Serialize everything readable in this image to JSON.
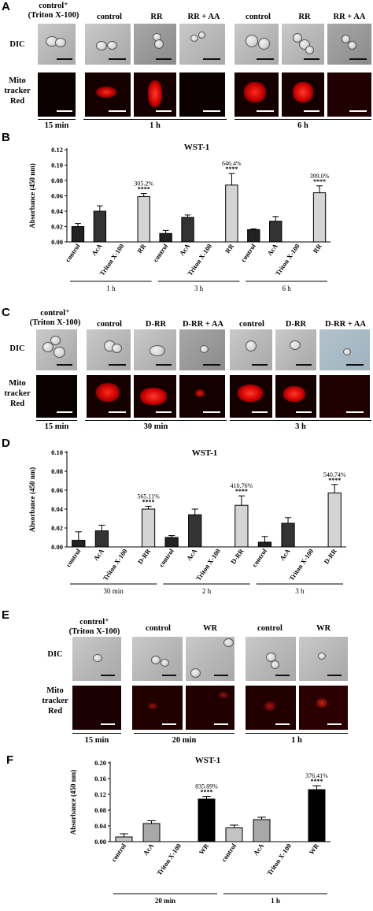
{
  "panels": {
    "A": {
      "letter": "A",
      "columns": [
        "control⁺\n(Triton X-100)",
        "control",
        "RR",
        "RR + AA",
        "control",
        "RR",
        "RR + AA"
      ],
      "rows": [
        "DIC",
        "Mito\ntracker\nRed"
      ],
      "times": [
        "15 min",
        "1 h",
        "6 h"
      ]
    },
    "C": {
      "letter": "C",
      "columns": [
        "control⁺\n(Triton X-100)",
        "control",
        "D-RR",
        "D-RR + AA",
        "control",
        "D-RR",
        "D-RR + AA"
      ],
      "rows": [
        "DIC",
        "Mito\ntracker\nRed"
      ],
      "times": [
        "15 min",
        "30 min",
        "3 h"
      ]
    },
    "E": {
      "letter": "E",
      "columns": [
        "control⁺\n(Triton X-100)",
        "control",
        "WR",
        "control",
        "WR"
      ],
      "rows": [
        "DIC",
        "Mito\ntracker\nRed"
      ],
      "times": [
        "15 min",
        "20 min",
        "1 h"
      ]
    }
  },
  "chart_data": [
    {
      "panel": "B",
      "type": "bar",
      "title": "WST-1",
      "ylabel": "Absorbance (450 nm)",
      "ylim": [
        0,
        0.12
      ],
      "yticks": [
        "0.00",
        "0.02",
        "0.04",
        "0.06",
        "0.08",
        "0.10",
        "0.12"
      ],
      "categories": [
        "control",
        "AcA",
        "Triton X-100",
        "RR",
        "control",
        "AcA",
        "Triton X-100",
        "RR",
        "control",
        "AcA",
        "Triton X-100",
        "RR"
      ],
      "values": [
        0.02,
        0.04,
        0,
        0.059,
        0.011,
        0.032,
        0,
        0.074,
        0.016,
        0.027,
        0,
        0.064
      ],
      "errors": [
        0.004,
        0.007,
        0,
        0.004,
        0.004,
        0.003,
        0,
        0.015,
        0.001,
        0.006,
        0,
        0.009
      ],
      "colors": [
        "#222222",
        "#333333",
        "#ffffff",
        "#d4d4d4",
        "#222222",
        "#333333",
        "#ffffff",
        "#d4d4d4",
        "#222222",
        "#333333",
        "#ffffff",
        "#d4d4d4"
      ],
      "annotations": [
        {
          "index": 3,
          "pct": "305.2%",
          "stars": "****"
        },
        {
          "index": 7,
          "pct": "646.4%",
          "stars": "****"
        },
        {
          "index": 11,
          "pct": "399.0%",
          "stars": "****"
        }
      ],
      "groups": [
        "1 h",
        "3 h",
        "6 h"
      ]
    },
    {
      "panel": "D",
      "type": "bar",
      "title": "WST-1",
      "ylabel": "Absorbance (450 nm)",
      "ylim": [
        0,
        0.1
      ],
      "yticks": [
        "0.00",
        "0.02",
        "0.04",
        "0.06",
        "0.08",
        "0.10"
      ],
      "categories": [
        "control",
        "AcA",
        "Triton X-100",
        "D-RR",
        "control",
        "AcA",
        "Triton X-100",
        "D-RR",
        "control",
        "AcA",
        "Triton X-100",
        "D-RR"
      ],
      "values": [
        0.007,
        0.017,
        0,
        0.04,
        0.01,
        0.034,
        0,
        0.044,
        0.005,
        0.025,
        0,
        0.057
      ],
      "errors": [
        0.009,
        0.006,
        0,
        0.003,
        0.002,
        0.006,
        0,
        0.01,
        0.006,
        0.006,
        0,
        0.009
      ],
      "colors": [
        "#222222",
        "#333333",
        "#ffffff",
        "#d4d4d4",
        "#222222",
        "#333333",
        "#ffffff",
        "#d4d4d4",
        "#222222",
        "#333333",
        "#ffffff",
        "#d4d4d4"
      ],
      "annotations": [
        {
          "index": 3,
          "pct": "565.11%",
          "stars": "****"
        },
        {
          "index": 7,
          "pct": "410.76%",
          "stars": "****"
        },
        {
          "index": 11,
          "pct": "540.74%",
          "stars": "****"
        }
      ],
      "groups": [
        "30 min",
        "2 h",
        "3 h"
      ]
    },
    {
      "panel": "F",
      "type": "bar",
      "title": "WST-1",
      "ylabel": "Absorbance (450 nm)",
      "ylim": [
        0,
        0.2
      ],
      "yticks": [
        "0.00",
        "0.04",
        "0.08",
        "0.12",
        "0.16",
        "0.20"
      ],
      "categories": [
        "control",
        "AcA",
        "Triton X-100",
        "WR",
        "control",
        "AcA",
        "Triton X-100",
        "WR"
      ],
      "values": [
        0.012,
        0.046,
        0,
        0.108,
        0.035,
        0.056,
        0,
        0.132
      ],
      "errors": [
        0.008,
        0.007,
        0,
        0.007,
        0.007,
        0.006,
        0,
        0.01
      ],
      "colors": [
        "#c4c4c4",
        "#a8a8a8",
        "#ffffff",
        "#000000",
        "#c4c4c4",
        "#a8a8a8",
        "#ffffff",
        "#000000"
      ],
      "annotations": [
        {
          "index": 3,
          "pct": "835.89%",
          "stars": "****"
        },
        {
          "index": 7,
          "pct": "376.41%",
          "stars": "****"
        }
      ],
      "groups": [
        "20 min",
        "1 h"
      ]
    }
  ]
}
